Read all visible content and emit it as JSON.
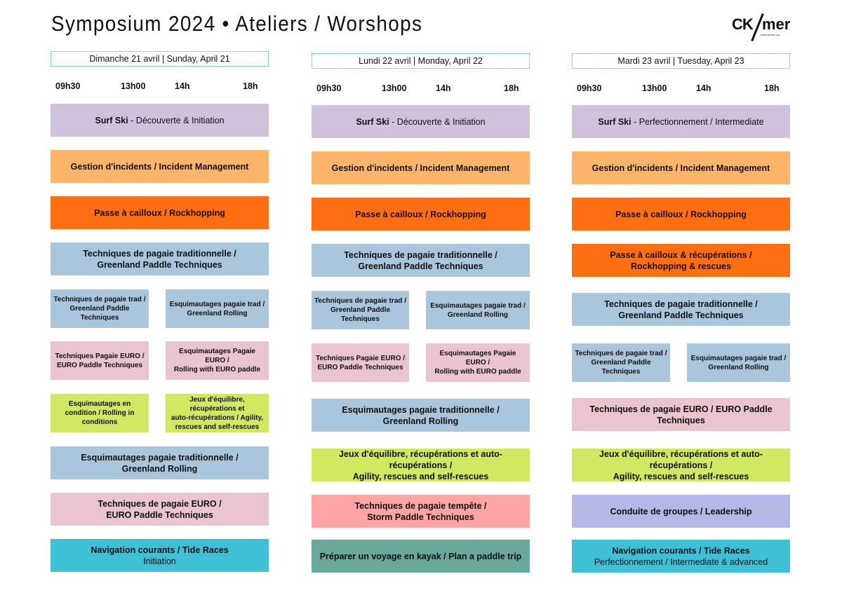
{
  "title": "Symposium 2024 • Ateliers / Worshops",
  "logo": {
    "text": "CK/mer",
    "url": "www.ckmer.org"
  },
  "times": [
    "09h30",
    "13h00",
    "14h",
    "18h"
  ],
  "colors": {
    "lavender": "#d1c2dc",
    "light_orange": "#fdb56b",
    "orange": "#ff6e10",
    "blue": "#aac6dc",
    "pink": "#eac4cf",
    "lime": "#d0e862",
    "teal": "#3ec0d7",
    "salmon": "#fca5a4",
    "sage": "#6aa89c",
    "periwinkle": "#b3b8e6"
  },
  "days": [
    {
      "label": "Dimanche 21 avril | Sunday, April 21",
      "blocks": [
        {
          "bold": "Surf Ski",
          "normal": " - Découverte & Initiation",
          "color": "lavender"
        },
        {
          "bold": "Gestion d'incidents / Incident Management",
          "normal": "",
          "color": "light_orange"
        },
        {
          "bold": "Passe à cailloux / Rockhopping",
          "normal": "",
          "color": "orange"
        },
        {
          "bold": "Techniques de pagaie traditionnelle /\nGreenland Paddle Techniques",
          "normal": "",
          "color": "blue"
        },
        {
          "bold": "Techniques de pagaie trad /\nGreenland Paddle\nTechniques",
          "normal": "",
          "color": "blue",
          "small": true
        },
        {
          "bold": "Esquimautages pagaie trad /\nGreenland Rolling",
          "normal": "",
          "color": "blue",
          "small": true
        },
        {
          "bold": "Techniques Pagaie EURO /\nEURO Paddle Techniques",
          "normal": "",
          "color": "pink",
          "small": true
        },
        {
          "bold": "Esquimautages Pagaie EURO /\nRolling with EURO paddle",
          "normal": "",
          "color": "pink",
          "small": true
        },
        {
          "bold": "Esquimautages en\ncondition / Rolling in\nconditions",
          "normal": "",
          "color": "lime",
          "small": true
        },
        {
          "bold": "Jeux d'équilibre, récupérations et\nauto-récupérations / Agility,\nrescues and self-rescues",
          "normal": "",
          "color": "lime",
          "small": true
        },
        {
          "bold": "Esquimautages pagaie traditionnelle /\nGreenland Rolling",
          "normal": "",
          "color": "blue"
        },
        {
          "bold": "Techniques de pagaie EURO /\nEURO Paddle Techniques",
          "normal": "",
          "color": "pink"
        },
        {
          "bold": "Navigation courants / Tide Races",
          "normal": "\nInitiation",
          "color": "teal"
        }
      ]
    },
    {
      "label": "Lundi 22 avril | Monday, April 22",
      "blocks": [
        {
          "bold": "Surf Ski",
          "normal": " - Découverte & Initiation",
          "color": "lavender"
        },
        {
          "bold": "Gestion d'incidents / Incident Management",
          "normal": "",
          "color": "light_orange"
        },
        {
          "bold": "Passe à cailloux / Rockhopping",
          "normal": "",
          "color": "orange"
        },
        {
          "bold": "Techniques de pagaie traditionnelle /\nGreenland Paddle Techniques",
          "normal": "",
          "color": "blue"
        },
        {
          "bold": "Techniques de pagaie trad /\nGreenland Paddle\nTechniques",
          "normal": "",
          "color": "blue",
          "small": true
        },
        {
          "bold": "Esquimautages pagaie trad /\nGreenland Rolling",
          "normal": "",
          "color": "blue",
          "small": true
        },
        {
          "bold": "Techniques Pagaie EURO /\nEURO Paddle Techniques",
          "normal": "",
          "color": "pink",
          "small": true
        },
        {
          "bold": "Esquimautages Pagaie EURO /\nRolling with EURO paddle",
          "normal": "",
          "color": "pink",
          "small": true
        },
        {
          "bold": "Esquimautages pagaie traditionnelle /\nGreenland Rolling",
          "normal": "",
          "color": "blue"
        },
        {
          "bold": "Jeux d'équilibre, récupérations et auto-récupérations /\nAgility, rescues and self-rescues",
          "normal": "",
          "color": "lime"
        },
        {
          "bold": "Techniques de pagaie tempête /\nStorm Paddle Techniques",
          "normal": "",
          "color": "salmon"
        },
        {
          "bold": "Préparer un voyage en kayak / Plan a paddle trip",
          "normal": "",
          "color": "sage"
        }
      ]
    },
    {
      "label": "Mardi 23 avril | Tuesday, April 23",
      "blocks": [
        {
          "bold": "Surf Ski",
          "normal": " - Perfectionnement / Intermediate",
          "color": "lavender"
        },
        {
          "bold": "Gestion d'incidents / Incident Management",
          "normal": "",
          "color": "light_orange"
        },
        {
          "bold": "Passe à cailloux / Rockhopping",
          "normal": "",
          "color": "orange"
        },
        {
          "bold": "Passe à cailloux & récupérations /\nRockhopping & rescues",
          "normal": "",
          "color": "orange"
        },
        {
          "bold": "Techniques de pagaie traditionnelle /\nGreenland Paddle Techniques",
          "normal": "",
          "color": "blue"
        },
        {
          "bold": "Techniques de pagaie trad /\nGreenland Paddle\nTechniques",
          "normal": "",
          "color": "blue",
          "small": true
        },
        {
          "bold": "Esquimautages pagaie trad /\nGreenland Rolling",
          "normal": "",
          "color": "blue",
          "small": true
        },
        {
          "bold": "Techniques de pagaie EURO / EURO Paddle Techniques",
          "normal": "",
          "color": "pink"
        },
        {
          "bold": "Jeux d'équilibre, récupérations et auto-récupérations /\nAgility, rescues and self-rescues",
          "normal": "",
          "color": "lime"
        },
        {
          "bold": "Conduite de groupes / Leadership",
          "normal": "",
          "color": "periwinkle"
        },
        {
          "bold": "Navigation courants / Tide Races",
          "normal": "\nPerfectionnement / Intermediate & advanced",
          "color": "teal"
        }
      ]
    }
  ]
}
